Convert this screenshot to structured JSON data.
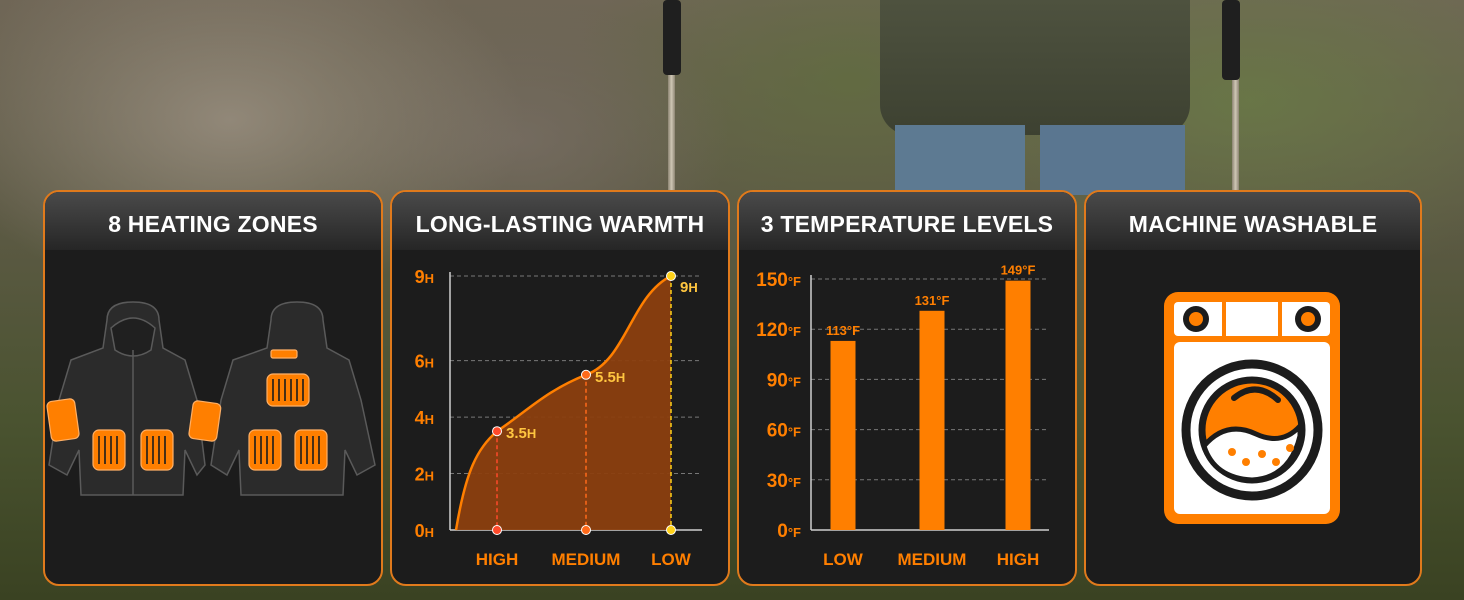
{
  "cards": [
    {
      "title": "8 HEATING ZONES"
    },
    {
      "title": "LONG-LASTING WARMTH"
    },
    {
      "title": "3 TEMPERATURE LEVELS"
    },
    {
      "title": "MACHINE WASHABLE"
    }
  ],
  "colors": {
    "accent": "#ff7f00",
    "label": "#ffc640",
    "card_bg": "#1c1c1c"
  },
  "icons": [
    "jacket-front-icon",
    "jacket-back-icon",
    "heating-pad-icon",
    "washing-machine-icon"
  ],
  "chart_data": [
    {
      "type": "area",
      "title": "LONG-LASTING WARMTH",
      "y_ticks": [
        {
          "value": 0,
          "unit": "H"
        },
        {
          "value": 2,
          "unit": "H"
        },
        {
          "value": 4,
          "unit": "H"
        },
        {
          "value": 6,
          "unit": "H"
        },
        {
          "value": 9,
          "unit": "H"
        }
      ],
      "categories": [
        "HIGH",
        "MEDIUM",
        "LOW"
      ],
      "points": [
        {
          "category": "HIGH",
          "value": 3.5,
          "label": "3.5",
          "unit": "H"
        },
        {
          "category": "MEDIUM",
          "value": 5.5,
          "label": "5.5",
          "unit": "H"
        },
        {
          "category": "LOW",
          "value": 9,
          "label": "9",
          "unit": "H"
        }
      ],
      "ylim": [
        0,
        9
      ],
      "grid": true
    },
    {
      "type": "bar",
      "title": "3 TEMPERATURE LEVELS",
      "y_ticks": [
        {
          "value": 0,
          "unit": "°F"
        },
        {
          "value": 30,
          "unit": "°F"
        },
        {
          "value": 60,
          "unit": "°F"
        },
        {
          "value": 90,
          "unit": "°F"
        },
        {
          "value": 120,
          "unit": "°F"
        },
        {
          "value": 150,
          "unit": "°F"
        }
      ],
      "categories": [
        "LOW",
        "MEDIUM",
        "HIGH"
      ],
      "values": [
        113,
        131,
        149
      ],
      "value_labels": [
        "113°F",
        "131°F",
        "149°F"
      ],
      "ylim": [
        0,
        150
      ],
      "grid": true
    }
  ]
}
